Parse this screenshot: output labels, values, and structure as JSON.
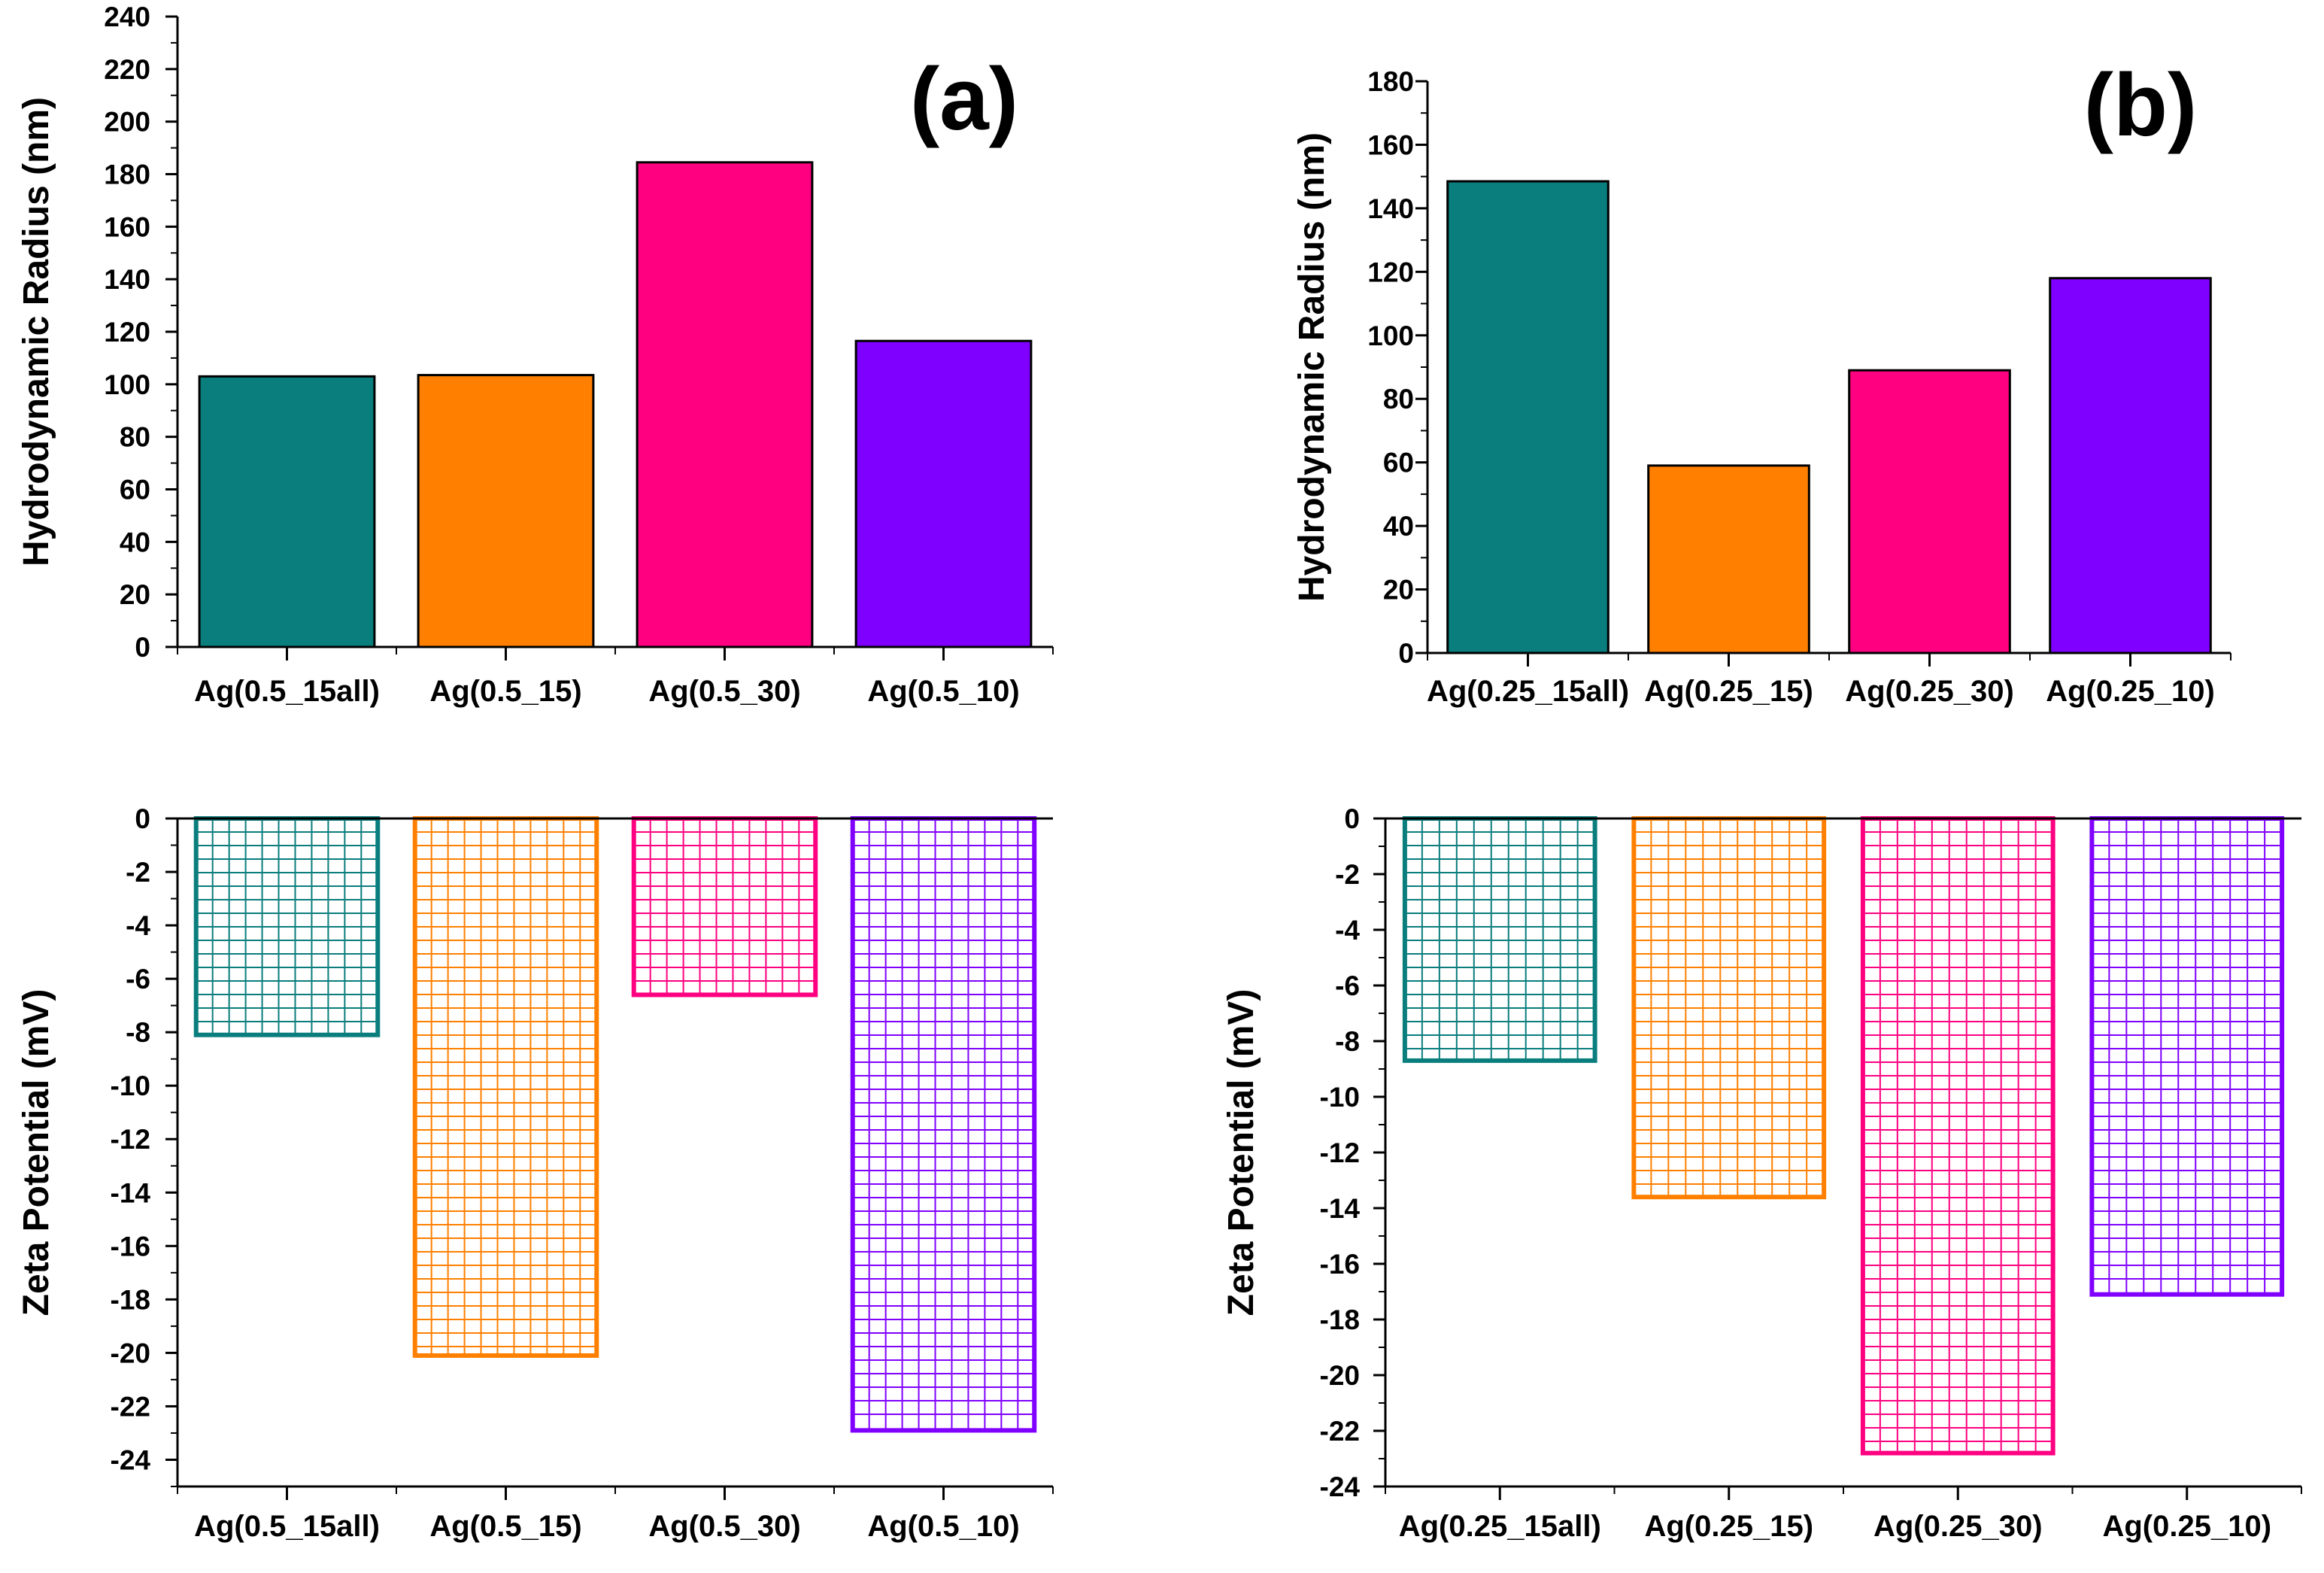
{
  "figure": {
    "panel_labels": [
      "(a)",
      "(b)"
    ]
  },
  "chart_data": [
    {
      "type": "bar",
      "panel": "(a)",
      "title": "",
      "xlabel": "",
      "ylabel": "Hydrodynamic Radius (nm)",
      "categories": [
        "Ag(0.5_15all)",
        "Ag(0.5_15)",
        "Ag(0.5_30)",
        "Ag(0.5_10)"
      ],
      "values": [
        103,
        103.5,
        184.5,
        116.5
      ],
      "colors": [
        "#0a7d7d",
        "#ff8000",
        "#ff0080",
        "#8000ff"
      ],
      "fill_style": "solid",
      "ylim": [
        0,
        240
      ],
      "yticks": [
        0,
        20,
        40,
        60,
        80,
        100,
        120,
        140,
        160,
        180,
        200,
        220,
        240
      ]
    },
    {
      "type": "bar",
      "panel": "(b)",
      "title": "",
      "xlabel": "",
      "ylabel": "Hydrodynamic Radius (nm)",
      "categories": [
        "Ag(0.25_15all)",
        "Ag(0.25_15)",
        "Ag(0.25_30)",
        "Ag(0.25_10)"
      ],
      "values": [
        148.5,
        59,
        89,
        118
      ],
      "colors": [
        "#0a7d7d",
        "#ff8000",
        "#ff0080",
        "#8000ff"
      ],
      "fill_style": "solid",
      "ylim": [
        0,
        180
      ],
      "yticks": [
        0,
        20,
        40,
        60,
        80,
        100,
        120,
        140,
        160,
        180
      ]
    },
    {
      "type": "bar",
      "panel": "(a)",
      "title": "",
      "xlabel": "",
      "ylabel": "Zeta Potential (mV)",
      "categories": [
        "Ag(0.5_15all)",
        "Ag(0.5_15)",
        "Ag(0.5_30)",
        "Ag(0.5_10)"
      ],
      "values": [
        -8.1,
        -20.1,
        -6.6,
        -22.9
      ],
      "colors": [
        "#0a7d7d",
        "#ff8000",
        "#ff0080",
        "#8000ff"
      ],
      "fill_style": "grid-hatch",
      "ylim": [
        -25,
        0
      ],
      "yticks": [
        0,
        -2,
        -4,
        -6,
        -8,
        -10,
        -12,
        -14,
        -16,
        -18,
        -20,
        -22,
        -24
      ]
    },
    {
      "type": "bar",
      "panel": "(b)",
      "title": "",
      "xlabel": "",
      "ylabel": "Zeta Potential (mV)",
      "categories": [
        "Ag(0.25_15all)",
        "Ag(0.25_15)",
        "Ag(0.25_30)",
        "Ag(0.25_10)"
      ],
      "values": [
        -8.7,
        -13.6,
        -22.8,
        -17.1
      ],
      "colors": [
        "#0a7d7d",
        "#ff8000",
        "#ff0080",
        "#8000ff"
      ],
      "fill_style": "grid-hatch",
      "ylim": [
        -24,
        0
      ],
      "yticks": [
        0,
        -2,
        -4,
        -6,
        -8,
        -10,
        -12,
        -14,
        -16,
        -18,
        -20,
        -22,
        -24
      ]
    }
  ]
}
